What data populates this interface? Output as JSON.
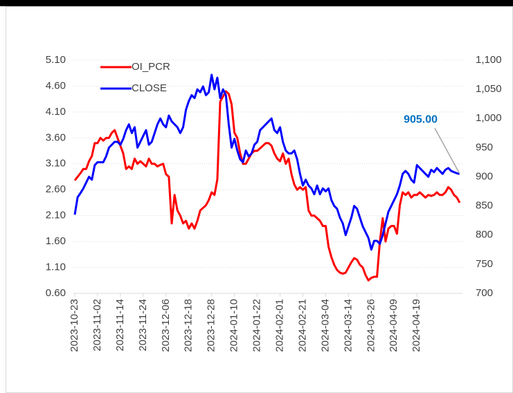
{
  "chart_data": {
    "type": "line",
    "categories": [
      "2023-10-23",
      null,
      null,
      null,
      null,
      null,
      null,
      null,
      "2023-11-02",
      null,
      null,
      null,
      null,
      null,
      null,
      null,
      "2023-11-14",
      null,
      null,
      null,
      null,
      null,
      null,
      null,
      "2023-11-24",
      null,
      null,
      null,
      null,
      null,
      null,
      null,
      "2023-12-06",
      null,
      null,
      null,
      null,
      null,
      null,
      null,
      "2023-12-18",
      null,
      null,
      null,
      null,
      null,
      null,
      null,
      "2023-12-28",
      null,
      null,
      null,
      null,
      null,
      null,
      null,
      "2024-01-10",
      null,
      null,
      null,
      null,
      null,
      null,
      null,
      "2024-01-22",
      null,
      null,
      null,
      null,
      null,
      null,
      null,
      "2024-02-01",
      null,
      null,
      null,
      null,
      null,
      null,
      null,
      "2024-02-21",
      null,
      null,
      null,
      null,
      null,
      null,
      null,
      "2024-03-04",
      null,
      null,
      null,
      null,
      null,
      null,
      null,
      "2024-03-14",
      null,
      null,
      null,
      null,
      null,
      null,
      null,
      "2024-03-26",
      null,
      null,
      null,
      null,
      null,
      null,
      null,
      "2024-04-09",
      null,
      null,
      null,
      null,
      null,
      null,
      null,
      "2024-04-19",
      null,
      null,
      null,
      null,
      null,
      null,
      null,
      null,
      null,
      null,
      null,
      null,
      null,
      null,
      null
    ],
    "series": [
      {
        "name": "OI_PCR",
        "color": "#ff0000",
        "values": [
          2.78,
          2.85,
          2.92,
          3.0,
          3.0,
          3.15,
          3.25,
          3.5,
          3.5,
          3.6,
          3.55,
          3.6,
          3.6,
          3.7,
          3.75,
          3.6,
          3.45,
          3.3,
          3.0,
          3.05,
          3.0,
          3.2,
          3.1,
          3.15,
          3.1,
          3.05,
          3.2,
          3.1,
          3.1,
          3.05,
          3.08,
          3.1,
          2.9,
          2.85,
          1.95,
          2.5,
          2.2,
          2.1,
          1.95,
          2.0,
          1.85,
          1.95,
          1.85,
          2.0,
          2.2,
          2.25,
          2.3,
          2.4,
          2.55,
          2.5,
          2.8,
          4.3,
          4.4,
          4.5,
          4.45,
          4.25,
          3.7,
          3.6,
          3.3,
          3.1,
          3.1,
          3.2,
          3.3,
          3.35,
          3.35,
          3.4,
          3.45,
          3.5,
          3.5,
          3.45,
          3.3,
          3.2,
          3.15,
          3.3,
          3.1,
          3.2,
          2.9,
          2.7,
          2.6,
          2.65,
          2.6,
          2.65,
          2.2,
          2.1,
          2.1,
          2.05,
          2.0,
          1.9,
          1.9,
          1.5,
          1.3,
          1.15,
          1.05,
          1.0,
          0.98,
          1.0,
          1.1,
          1.2,
          1.28,
          1.25,
          1.15,
          1.1,
          0.95,
          0.85,
          0.9,
          0.92,
          0.92,
          1.6,
          2.05,
          1.6,
          1.85,
          1.9,
          1.9,
          1.75,
          2.3,
          2.55,
          2.5,
          2.55,
          2.45,
          2.5,
          2.5,
          2.55,
          2.5,
          2.45,
          2.5,
          2.48,
          2.5,
          2.55,
          2.5,
          2.5,
          2.55,
          2.65,
          2.6,
          2.5,
          2.45,
          2.35
        ]
      },
      {
        "name": "CLOSE",
        "color": "#0000ff",
        "axis": "y2",
        "values": [
          835,
          865,
          872,
          880,
          890,
          900,
          895,
          920,
          925,
          925,
          925,
          935,
          950,
          955,
          960,
          960,
          955,
          965,
          980,
          990,
          975,
          985,
          950,
          960,
          970,
          980,
          955,
          960,
          975,
          990,
          1000,
          990,
          985,
          1005,
          995,
          990,
          985,
          975,
          985,
          1015,
          1030,
          1040,
          1035,
          1050,
          1045,
          1055,
          1040,
          1045,
          1075,
          1050,
          1070,
          1035,
          1050,
          1040,
          990,
          950,
          965,
          945,
          930,
          925,
          945,
          935,
          940,
          955,
          960,
          980,
          985,
          990,
          995,
          1000,
          980,
          975,
          985,
          960,
          945,
          940,
          940,
          945,
          930,
          905,
          885,
          895,
          885,
          880,
          870,
          885,
          870,
          880,
          875,
          880,
          860,
          850,
          845,
          830,
          820,
          800,
          815,
          830,
          850,
          845,
          830,
          815,
          805,
          795,
          775,
          790,
          790,
          785,
          800,
          820,
          840,
          850,
          860,
          870,
          885,
          905,
          910,
          905,
          895,
          890,
          920,
          915,
          910,
          905,
          900,
          912,
          908,
          915,
          910,
          905,
          912,
          915,
          910,
          908,
          906,
          905
        ],
        "value_labels": [
          null,
          null,
          null,
          null,
          null,
          null,
          null,
          null,
          null,
          null,
          null,
          null,
          null,
          null,
          null,
          null,
          null,
          null,
          null,
          null,
          null,
          null,
          null,
          null,
          null,
          null,
          null,
          null,
          null,
          null,
          null,
          null,
          null,
          null,
          null,
          null,
          null,
          null,
          null,
          null,
          null,
          null,
          null,
          null,
          null,
          null,
          null,
          null,
          null,
          null,
          null,
          null,
          null,
          null,
          null,
          null,
          null,
          null,
          null,
          null,
          null,
          null,
          null,
          null,
          null,
          null,
          null,
          null,
          null,
          null,
          null,
          null,
          null,
          null,
          null,
          null,
          null,
          null,
          null,
          null,
          null,
          null,
          null,
          null,
          null,
          null,
          null,
          null,
          null,
          null,
          null,
          null,
          null,
          null,
          null,
          null,
          null,
          null,
          null,
          null,
          null,
          null,
          null,
          null,
          null,
          null,
          null,
          null,
          null,
          null,
          null,
          null,
          null,
          null,
          null,
          null,
          null,
          null,
          null,
          null,
          null,
          null,
          null,
          null,
          null,
          null,
          null,
          null,
          null,
          null,
          null,
          null,
          null,
          null,
          null,
          "905.00"
        ]
      }
    ],
    "ylim": [
      0.6,
      5.1
    ],
    "yticks": [
      {
        "value": 0.6,
        "label": "0.60"
      },
      {
        "value": 1.1,
        "label": "1.10"
      },
      {
        "value": 1.6,
        "label": "1.60"
      },
      {
        "value": 2.1,
        "label": "2.10"
      },
      {
        "value": 2.6,
        "label": "2.60"
      },
      {
        "value": 3.1,
        "label": "3.10"
      },
      {
        "value": 3.6,
        "label": "3.60"
      },
      {
        "value": 4.1,
        "label": "4.10"
      },
      {
        "value": 4.6,
        "label": "4.60"
      },
      {
        "value": 5.1,
        "label": "5.10"
      }
    ],
    "y2lim": [
      700,
      1100
    ],
    "y2ticks": [
      700,
      750,
      800,
      850,
      900,
      950,
      {
        "value": 1000,
        "label": "1,000"
      },
      {
        "value": 1050,
        "label": "1,050"
      },
      {
        "value": 1100,
        "label": "1,100"
      }
    ],
    "grid": true,
    "legend": "upper left"
  }
}
